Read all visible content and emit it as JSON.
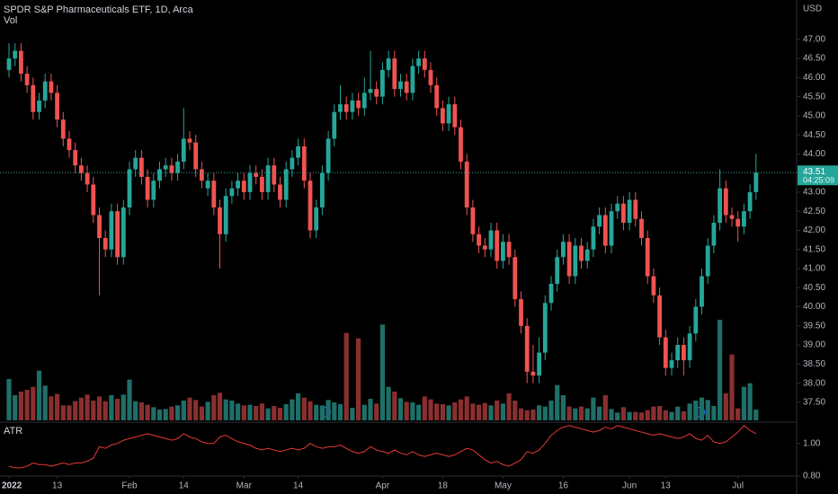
{
  "chart_data": {
    "type": "candlestick",
    "title": "SPDR S&P Pharmaceuticals ETF, 1D, Arca",
    "volume_label": "Vol",
    "currency": "USD",
    "countdown": "04:25:09",
    "up_color": "#26a69a",
    "down_color": "#ef5350",
    "ylim": [
      36.98,
      48.03
    ],
    "yticks": [
      {
        "value": 47,
        "label": "47.00"
      },
      {
        "value": 46.5,
        "label": "46.50"
      },
      {
        "value": 46,
        "label": "46.00"
      },
      {
        "value": 45.5,
        "label": "45.50"
      },
      {
        "value": 45,
        "label": "45.00"
      },
      {
        "value": 44.5,
        "label": "44.50"
      },
      {
        "value": 44,
        "label": "44.00"
      },
      {
        "value": 43,
        "label": "43.00"
      },
      {
        "value": 42.5,
        "label": "42.50"
      },
      {
        "value": 42,
        "label": "42.00"
      },
      {
        "value": 41.5,
        "label": "41.50"
      },
      {
        "value": 41,
        "label": "41.00"
      },
      {
        "value": 40.5,
        "label": "40.50"
      },
      {
        "value": 40,
        "label": "40.00"
      },
      {
        "value": 39.5,
        "label": "39.50"
      },
      {
        "value": 39,
        "label": "39.00"
      },
      {
        "value": 38.5,
        "label": "38.50"
      },
      {
        "value": 38,
        "label": "38.00"
      },
      {
        "value": 37.5,
        "label": "37.50"
      }
    ],
    "xticks": [
      {
        "value": 0,
        "label": "2022"
      },
      {
        "value": 8,
        "label": "13"
      },
      {
        "value": 20,
        "label": "Feb"
      },
      {
        "value": 29,
        "label": "14"
      },
      {
        "value": 39,
        "label": "Mar"
      },
      {
        "value": 48,
        "label": "14"
      },
      {
        "value": 62,
        "label": "Apr"
      },
      {
        "value": 72,
        "label": "18"
      },
      {
        "value": 82,
        "label": "May"
      },
      {
        "value": 92,
        "label": "16"
      },
      {
        "value": 103,
        "label": "Jun"
      },
      {
        "value": 109,
        "label": "13"
      },
      {
        "value": 121,
        "label": "Jul"
      }
    ],
    "ohlc": [
      [
        46.2,
        46.9,
        46.0,
        46.5
      ],
      [
        46.5,
        46.9,
        46.3,
        46.7
      ],
      [
        46.7,
        46.9,
        45.9,
        46.1
      ],
      [
        46.1,
        46.3,
        45.6,
        45.8
      ],
      [
        45.8,
        46.0,
        44.9,
        45.1
      ],
      [
        45.1,
        45.6,
        44.9,
        45.4
      ],
      [
        45.4,
        46.1,
        45.2,
        45.9
      ],
      [
        45.9,
        46.1,
        45.4,
        45.6
      ],
      [
        45.6,
        45.8,
        44.7,
        44.9
      ],
      [
        44.9,
        45.1,
        44.2,
        44.4
      ],
      [
        44.4,
        44.6,
        43.9,
        44.1
      ],
      [
        44.1,
        44.3,
        43.5,
        43.7
      ],
      [
        43.7,
        43.9,
        43.3,
        43.5
      ],
      [
        43.5,
        43.7,
        43.0,
        43.2
      ],
      [
        43.2,
        43.4,
        42.2,
        42.4
      ],
      [
        42.4,
        42.6,
        40.3,
        41.8
      ],
      [
        41.8,
        42.0,
        41.3,
        41.5
      ],
      [
        41.5,
        42.7,
        41.3,
        42.5
      ],
      [
        42.5,
        42.7,
        41.1,
        41.3
      ],
      [
        41.3,
        42.8,
        41.1,
        42.6
      ],
      [
        42.6,
        43.8,
        42.4,
        43.6
      ],
      [
        43.6,
        44.1,
        43.4,
        43.9
      ],
      [
        43.9,
        44.1,
        43.2,
        43.4
      ],
      [
        43.4,
        43.6,
        42.6,
        42.8
      ],
      [
        42.8,
        43.5,
        42.6,
        43.3
      ],
      [
        43.3,
        43.8,
        43.1,
        43.6
      ],
      [
        43.6,
        43.9,
        43.4,
        43.7
      ],
      [
        43.7,
        43.9,
        43.3,
        43.5
      ],
      [
        43.5,
        44.0,
        43.3,
        43.8
      ],
      [
        43.8,
        45.2,
        43.6,
        44.4
      ],
      [
        44.4,
        44.6,
        44.1,
        44.3
      ],
      [
        44.3,
        44.5,
        43.4,
        43.6
      ],
      [
        43.6,
        43.8,
        43.1,
        43.3
      ],
      [
        43.1,
        43.5,
        42.9,
        43.3
      ],
      [
        43.3,
        43.5,
        42.4,
        42.6
      ],
      [
        42.6,
        42.8,
        41.0,
        41.9
      ],
      [
        41.9,
        43.1,
        41.7,
        42.9
      ],
      [
        42.9,
        43.3,
        42.7,
        43.1
      ],
      [
        43.1,
        43.5,
        42.9,
        43.3
      ],
      [
        43.3,
        43.5,
        42.8,
        43.0
      ],
      [
        43.0,
        43.7,
        42.8,
        43.5
      ],
      [
        43.5,
        43.7,
        43.2,
        43.4
      ],
      [
        43.4,
        43.6,
        42.8,
        43.0
      ],
      [
        43.0,
        43.9,
        42.8,
        43.7
      ],
      [
        43.7,
        43.9,
        43.0,
        43.2
      ],
      [
        43.2,
        43.4,
        42.6,
        42.8
      ],
      [
        42.8,
        43.8,
        42.6,
        43.6
      ],
      [
        43.6,
        44.1,
        43.4,
        43.9
      ],
      [
        43.9,
        44.4,
        43.7,
        44.2
      ],
      [
        44.2,
        44.4,
        43.1,
        43.3
      ],
      [
        43.3,
        43.5,
        41.8,
        42.0
      ],
      [
        42.0,
        42.8,
        41.8,
        42.6
      ],
      [
        42.6,
        43.7,
        42.4,
        43.5
      ],
      [
        43.5,
        44.6,
        43.3,
        44.4
      ],
      [
        44.4,
        45.3,
        44.2,
        45.1
      ],
      [
        45.1,
        45.8,
        44.9,
        45.3
      ],
      [
        45.3,
        45.5,
        44.9,
        45.1
      ],
      [
        45.1,
        45.6,
        44.9,
        45.4
      ],
      [
        45.4,
        45.6,
        45.0,
        45.2
      ],
      [
        45.2,
        46.0,
        45.0,
        45.6
      ],
      [
        45.6,
        46.7,
        45.4,
        45.7
      ],
      [
        45.7,
        45.9,
        45.3,
        45.5
      ],
      [
        45.5,
        46.4,
        45.3,
        46.2
      ],
      [
        46.2,
        46.7,
        46.0,
        46.5
      ],
      [
        46.5,
        46.7,
        45.5,
        45.7
      ],
      [
        45.7,
        46.1,
        45.5,
        45.9
      ],
      [
        45.9,
        46.1,
        45.4,
        45.6
      ],
      [
        45.6,
        46.5,
        45.4,
        46.3
      ],
      [
        46.3,
        46.7,
        46.1,
        46.5
      ],
      [
        46.5,
        46.7,
        46.0,
        46.2
      ],
      [
        46.2,
        46.4,
        45.6,
        45.8
      ],
      [
        45.8,
        46.0,
        45.0,
        45.2
      ],
      [
        45.2,
        45.4,
        44.6,
        44.8
      ],
      [
        44.8,
        45.5,
        44.6,
        45.3
      ],
      [
        45.3,
        45.5,
        44.5,
        44.7
      ],
      [
        44.7,
        44.9,
        43.6,
        43.8
      ],
      [
        43.8,
        44.0,
        42.4,
        42.6
      ],
      [
        42.6,
        42.8,
        41.7,
        41.9
      ],
      [
        41.9,
        42.1,
        41.4,
        41.6
      ],
      [
        41.6,
        41.8,
        41.3,
        41.5
      ],
      [
        41.5,
        42.2,
        41.3,
        42.0
      ],
      [
        42.0,
        42.2,
        41.0,
        41.2
      ],
      [
        41.2,
        41.9,
        41.0,
        41.7
      ],
      [
        41.7,
        41.9,
        41.1,
        41.3
      ],
      [
        41.3,
        41.5,
        40.0,
        40.2
      ],
      [
        40.2,
        40.4,
        39.3,
        39.5
      ],
      [
        39.5,
        39.7,
        38.0,
        38.3
      ],
      [
        38.3,
        39.0,
        38.0,
        38.2
      ],
      [
        38.2,
        39.2,
        38.0,
        38.8
      ],
      [
        38.8,
        40.3,
        38.6,
        40.1
      ],
      [
        40.1,
        40.8,
        39.9,
        40.6
      ],
      [
        40.6,
        41.5,
        40.4,
        41.3
      ],
      [
        41.3,
        41.9,
        41.1,
        41.7
      ],
      [
        41.7,
        41.9,
        40.6,
        40.8
      ],
      [
        40.8,
        41.8,
        40.6,
        41.6
      ],
      [
        41.6,
        41.8,
        41.0,
        41.2
      ],
      [
        41.2,
        41.7,
        41.0,
        41.5
      ],
      [
        41.5,
        42.3,
        41.3,
        42.1
      ],
      [
        42.1,
        42.6,
        41.9,
        42.4
      ],
      [
        42.4,
        42.6,
        41.4,
        41.6
      ],
      [
        41.6,
        42.7,
        41.4,
        42.5
      ],
      [
        42.5,
        42.9,
        42.3,
        42.7
      ],
      [
        42.7,
        42.9,
        42.0,
        42.2
      ],
      [
        42.2,
        43.0,
        42.0,
        42.8
      ],
      [
        42.8,
        43.0,
        42.1,
        42.3
      ],
      [
        42.3,
        42.5,
        41.6,
        41.8
      ],
      [
        41.8,
        42.0,
        40.6,
        40.8
      ],
      [
        40.8,
        41.0,
        40.1,
        40.3
      ],
      [
        40.3,
        40.5,
        39.0,
        39.2
      ],
      [
        39.2,
        39.4,
        38.2,
        38.4
      ],
      [
        38.4,
        38.8,
        38.2,
        38.6
      ],
      [
        38.6,
        39.2,
        38.4,
        39.0
      ],
      [
        39.0,
        39.2,
        38.2,
        38.6
      ],
      [
        38.6,
        39.5,
        38.4,
        39.3
      ],
      [
        39.3,
        40.2,
        39.1,
        40.0
      ],
      [
        40.0,
        41.0,
        39.8,
        40.8
      ],
      [
        40.8,
        41.8,
        40.6,
        41.6
      ],
      [
        41.6,
        42.4,
        41.4,
        42.2
      ],
      [
        42.2,
        43.6,
        42.0,
        43.1
      ],
      [
        43.1,
        43.3,
        42.2,
        42.4
      ],
      [
        42.4,
        42.6,
        42.1,
        42.3
      ],
      [
        42.3,
        42.5,
        41.7,
        42.1
      ],
      [
        42.1,
        42.7,
        41.9,
        42.5
      ],
      [
        42.5,
        43.2,
        42.3,
        43.0
      ],
      [
        43.0,
        44.0,
        42.8,
        43.51
      ]
    ],
    "volume": [
      690,
      420,
      480,
      510,
      560,
      830,
      580,
      400,
      440,
      250,
      250,
      320,
      380,
      430,
      330,
      400,
      320,
      420,
      360,
      430,
      680,
      320,
      300,
      260,
      220,
      180,
      190,
      230,
      250,
      330,
      380,
      340,
      230,
      310,
      420,
      460,
      350,
      330,
      280,
      250,
      260,
      240,
      280,
      200,
      240,
      210,
      270,
      350,
      450,
      380,
      320,
      260,
      250,
      340,
      300,
      270,
      1460,
      210,
      1370,
      260,
      360,
      280,
      1600,
      560,
      480,
      370,
      310,
      300,
      260,
      400,
      350,
      280,
      270,
      250,
      300,
      350,
      400,
      280,
      260,
      290,
      250,
      330,
      280,
      450,
      330,
      200,
      170,
      180,
      250,
      230,
      330,
      590,
      420,
      230,
      200,
      230,
      200,
      380,
      230,
      420,
      190,
      130,
      220,
      140,
      140,
      130,
      170,
      230,
      240,
      170,
      140,
      230,
      150,
      280,
      330,
      380,
      340,
      240,
      1680,
      450,
      1100,
      200,
      560,
      620,
      180
    ],
    "atr": {
      "name": "ATR",
      "color": "#e53935",
      "ylim": [
        0.7,
        1.12
      ],
      "yticks": [
        {
          "value": 1,
          "label": "1.00"
        },
        {
          "value": 0.8,
          "label": "0.80"
        }
      ],
      "values": [
        0.86,
        0.85,
        0.85,
        0.86,
        0.88,
        0.87,
        0.87,
        0.86,
        0.87,
        0.88,
        0.87,
        0.88,
        0.88,
        0.89,
        0.91,
        0.98,
        0.97,
        0.99,
        1.0,
        1.02,
        1.03,
        1.04,
        1.05,
        1.06,
        1.05,
        1.04,
        1.03,
        1.02,
        1.03,
        1.06,
        1.04,
        1.03,
        1.01,
        1.0,
        1.0,
        1.04,
        1.05,
        1.03,
        1.01,
        1.0,
        0.99,
        0.97,
        0.96,
        0.97,
        0.96,
        0.95,
        0.96,
        0.97,
        0.96,
        0.97,
        1.0,
        0.98,
        0.97,
        0.98,
        0.98,
        0.99,
        0.97,
        0.95,
        0.94,
        0.95,
        0.98,
        0.96,
        0.95,
        0.94,
        0.96,
        0.94,
        0.93,
        0.95,
        0.93,
        0.92,
        0.93,
        0.94,
        0.93,
        0.92,
        0.93,
        0.95,
        0.97,
        0.96,
        0.93,
        0.9,
        0.88,
        0.89,
        0.87,
        0.86,
        0.88,
        0.9,
        0.95,
        0.94,
        0.96,
        1.0,
        1.05,
        1.08,
        1.1,
        1.11,
        1.1,
        1.09,
        1.08,
        1.07,
        1.08,
        1.1,
        1.09,
        1.11,
        1.1,
        1.09,
        1.08,
        1.07,
        1.06,
        1.05,
        1.06,
        1.05,
        1.04,
        1.03,
        1.04,
        1.06,
        1.03,
        1.02,
        1.05,
        1.01,
        1.0,
        1.01,
        1.04,
        1.07,
        1.11,
        1.08,
        1.06
      ]
    }
  }
}
